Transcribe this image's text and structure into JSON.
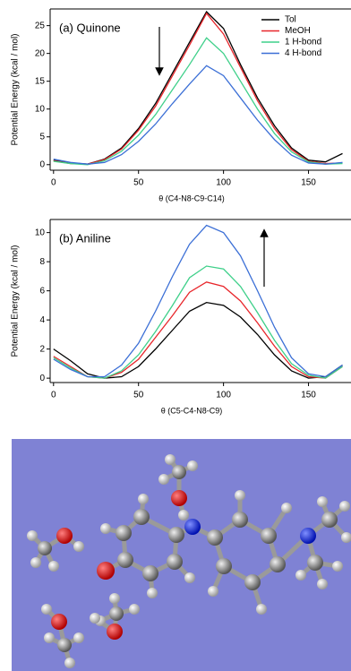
{
  "chart_data": [
    {
      "type": "line",
      "annotation": "(a) Quinone",
      "xlabel": "θ (C4-N8-C9-C14)",
      "ylabel": "Potential Energy (kcal / mol)",
      "x": [
        0,
        10,
        20,
        30,
        40,
        50,
        60,
        70,
        80,
        90,
        100,
        110,
        120,
        130,
        140,
        150,
        160,
        170
      ],
      "series": [
        {
          "name": "Tol",
          "color": "#000000",
          "values": [
            0.8,
            0.3,
            0.1,
            1.0,
            3.0,
            6.5,
            11,
            16.5,
            22,
            27.5,
            24.5,
            18,
            12,
            7,
            3,
            0.8,
            0.5,
            2.0
          ]
        },
        {
          "name": "MeOH",
          "color": "#e8262b",
          "values": [
            0.7,
            0.2,
            0.1,
            0.9,
            2.8,
            6.2,
            10.5,
            16,
            21.5,
            27.2,
            23.5,
            17.5,
            11.5,
            6.5,
            2.7,
            0.6,
            0.2,
            0.3
          ]
        },
        {
          "name": "1 H-bond",
          "color": "#3fd08a",
          "values": [
            0.6,
            0.2,
            0,
            0.7,
            2.4,
            5.3,
            9,
            13.5,
            18,
            22.8,
            20,
            15,
            10,
            5.6,
            2.3,
            0.5,
            0.1,
            0.2
          ]
        },
        {
          "name": "4 H-bond",
          "color": "#3b6fd6",
          "values": [
            1.0,
            0.4,
            0.1,
            0.4,
            1.8,
            4.2,
            7.3,
            11,
            14.5,
            17.8,
            16,
            12,
            8,
            4.5,
            1.7,
            0.3,
            0.1,
            0.4
          ]
        }
      ],
      "xlim": [
        -2,
        175
      ],
      "ylim": [
        -1,
        28
      ],
      "xticks": [
        0,
        50,
        100,
        150
      ],
      "yticks": [
        0,
        5,
        10,
        15,
        20,
        25
      ],
      "legend": "top-right",
      "grid": false
    },
    {
      "type": "line",
      "annotation": "(b) Aniline",
      "xlabel": "θ (C5-C4-N8-C9)",
      "ylabel": "Potential Energy (kcal / mol)",
      "x": [
        0,
        10,
        20,
        30,
        40,
        50,
        60,
        70,
        80,
        90,
        100,
        110,
        120,
        130,
        140,
        150,
        160,
        170
      ],
      "series": [
        {
          "color": "#000000",
          "values": [
            2.0,
            1.2,
            0.3,
            0,
            0.1,
            0.8,
            2,
            3.3,
            4.6,
            5.2,
            5.0,
            4.2,
            3.0,
            1.6,
            0.5,
            0,
            0.1,
            0.9
          ]
        },
        {
          "color": "#e8262b",
          "values": [
            1.5,
            0.8,
            0.1,
            0,
            0.4,
            1.3,
            2.8,
            4.3,
            5.9,
            6.6,
            6.3,
            5.3,
            3.8,
            2.2,
            0.8,
            0.1,
            0,
            0.8
          ]
        },
        {
          "color": "#3fd08a",
          "values": [
            1.4,
            0.7,
            0.1,
            0,
            0.5,
            1.6,
            3.2,
            5,
            6.9,
            7.7,
            7.5,
            6.3,
            4.5,
            2.6,
            1.0,
            0.2,
            0,
            0.8
          ]
        },
        {
          "color": "#3b6fd6",
          "values": [
            1.3,
            0.6,
            0.1,
            0.1,
            0.9,
            2.4,
            4.6,
            7.0,
            9.2,
            10.5,
            10.0,
            8.4,
            6.0,
            3.5,
            1.4,
            0.3,
            0.1,
            0.9
          ]
        }
      ],
      "xlim": [
        -2,
        175
      ],
      "ylim": [
        -0.3,
        10.9
      ],
      "xticks": [
        0,
        50,
        100,
        150
      ],
      "yticks": [
        0,
        2,
        4,
        6,
        8,
        10
      ],
      "grid": false
    }
  ]
}
